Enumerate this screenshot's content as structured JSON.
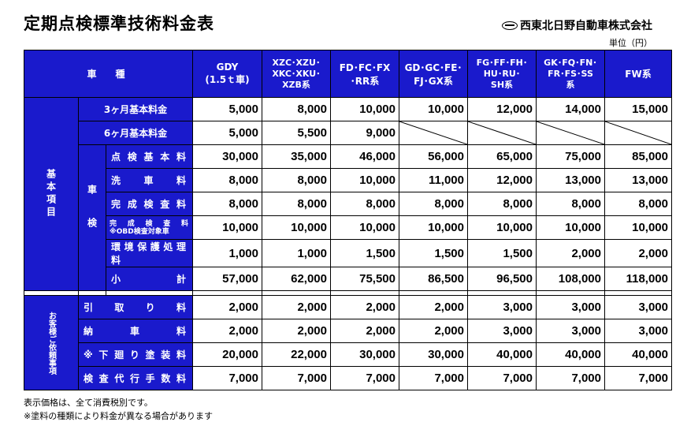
{
  "title": "定期点検標準技術料金表",
  "company": "西東北日野自動車株式会社",
  "unit": "単位（円）",
  "header": {
    "vehicle_type": "車　種",
    "columns": [
      [
        "GDY",
        "(1.5ｔ車)"
      ],
      [
        "XZC･XZU･",
        "XKC･XKU･",
        "XZB系"
      ],
      [
        "FD･FC･FX",
        "･RR系"
      ],
      [
        "GD･GC･FE･",
        "FJ･GX系"
      ],
      [
        "FG･FF･FH･",
        "HU･RU･",
        "SH系"
      ],
      [
        "GK･FQ･FN･",
        "FR･FS･SS",
        "系"
      ],
      [
        "FW系"
      ]
    ]
  },
  "group_labels": {
    "basic": "基本項目",
    "shaken": "車検",
    "customer": "お客様ご依頼事項"
  },
  "rows_basic_top": [
    {
      "label": "3ヶ月基本料金",
      "values": [
        "5,000",
        "8,000",
        "10,000",
        "10,000",
        "12,000",
        "14,000",
        "15,000"
      ]
    },
    {
      "label": "6ヶ月基本料金",
      "values": [
        "5,000",
        "5,500",
        "9,000",
        null,
        null,
        null,
        null
      ]
    }
  ],
  "rows_shaken": [
    {
      "label": "点検基本料",
      "values": [
        "30,000",
        "35,000",
        "46,000",
        "56,000",
        "65,000",
        "75,000",
        "85,000"
      ]
    },
    {
      "label": "洗　車　料",
      "values": [
        "8,000",
        "8,000",
        "10,000",
        "11,000",
        "12,000",
        "13,000",
        "13,000"
      ]
    },
    {
      "label": "完成検査料",
      "values": [
        "8,000",
        "8,000",
        "8,000",
        "8,000",
        "8,000",
        "8,000",
        "8,000"
      ]
    },
    {
      "label": "完成検査料",
      "label2": "※OBD検査対象車",
      "values": [
        "10,000",
        "10,000",
        "10,000",
        "10,000",
        "10,000",
        "10,000",
        "10,000"
      ]
    },
    {
      "label": "環境保護処理料",
      "values": [
        "1,000",
        "1,000",
        "1,500",
        "1,500",
        "1,500",
        "2,000",
        "2,000"
      ]
    },
    {
      "label": "小　　計",
      "values": [
        "57,000",
        "62,000",
        "75,500",
        "86,500",
        "96,500",
        "108,000",
        "118,000"
      ]
    }
  ],
  "rows_customer": [
    {
      "label": "引　取　り　料",
      "values": [
        "2,000",
        "2,000",
        "2,000",
        "2,000",
        "3,000",
        "3,000",
        "3,000"
      ]
    },
    {
      "label": "納　　車　　料",
      "values": [
        "2,000",
        "2,000",
        "2,000",
        "2,000",
        "3,000",
        "3,000",
        "3,000"
      ]
    },
    {
      "label": "※下廻り塗装料",
      "values": [
        "20,000",
        "22,000",
        "30,000",
        "30,000",
        "40,000",
        "40,000",
        "40,000"
      ]
    },
    {
      "label": "検査代行手数料",
      "values": [
        "7,000",
        "7,000",
        "7,000",
        "7,000",
        "7,000",
        "7,000",
        "7,000"
      ]
    }
  ],
  "notes": [
    "表示価格は、全て消費税別です。",
    "※塗料の種類により料金が異なる場合があります"
  ],
  "colors": {
    "header_bg": "#1a1acc",
    "header_fg": "#ffffff"
  }
}
